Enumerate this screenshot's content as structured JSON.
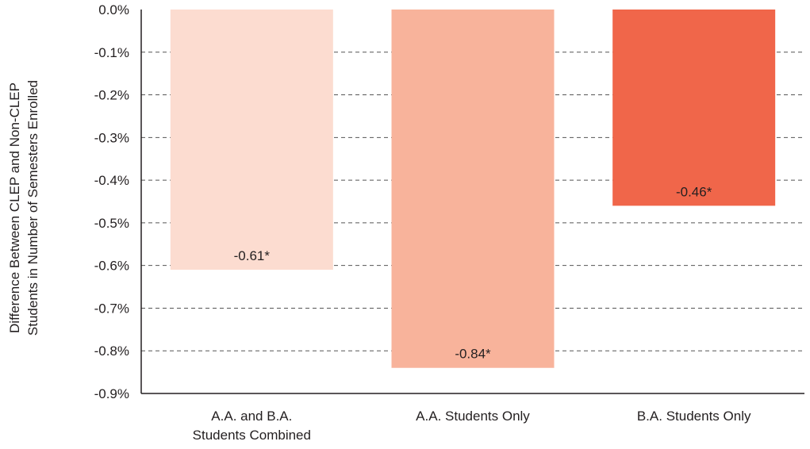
{
  "chart_data": {
    "type": "bar",
    "categories": [
      [
        "A.A. and B.A.",
        "Students Combined"
      ],
      [
        "A.A. Students Only"
      ],
      [
        "B.A. Students Only"
      ]
    ],
    "values": [
      -0.61,
      -0.84,
      -0.46
    ],
    "value_labels": [
      "-0.61*",
      "-0.84*",
      "-0.46*"
    ],
    "bar_colors": [
      "#fcdcd0",
      "#f8b39b",
      "#f0664a"
    ],
    "ylabel": [
      "Difference Between CLEP and Non-CLEP",
      "Students in Number of Semesters Enrolled"
    ],
    "xlabel": "",
    "ylim": [
      -0.9,
      0
    ],
    "y_ticks": [
      0,
      -0.1,
      -0.2,
      -0.3,
      -0.4,
      -0.5,
      -0.6,
      -0.7,
      -0.8,
      -0.9
    ],
    "y_tick_labels": [
      "0.0%",
      "-0.1%",
      "-0.2%",
      "-0.3%",
      "-0.4%",
      "-0.5%",
      "-0.6%",
      "-0.7%",
      "-0.8%",
      "-0.9%"
    ],
    "grid": "horizontal dashed",
    "legend": "none"
  }
}
